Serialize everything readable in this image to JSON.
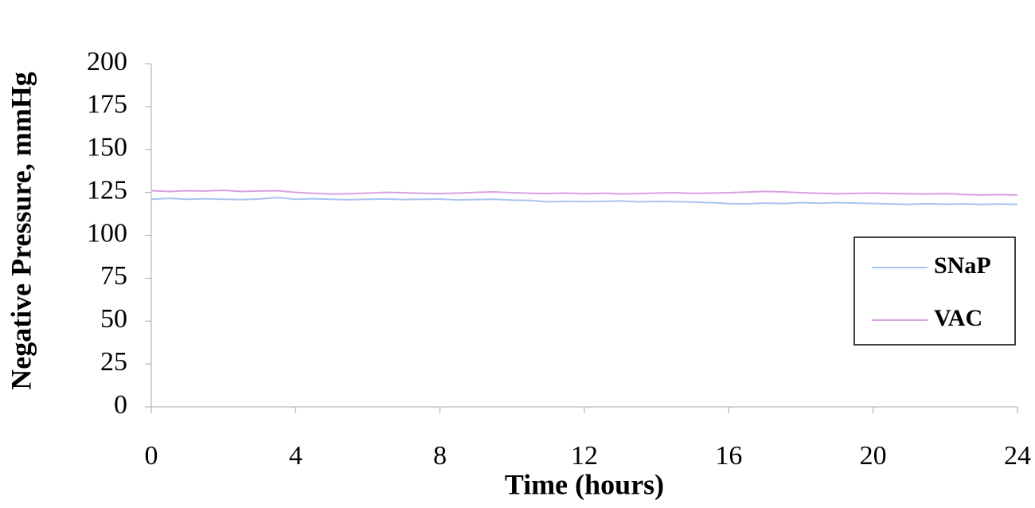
{
  "chart_data": {
    "type": "line",
    "x_label": "Time (hours)",
    "y_label": "Negative Pressure, mmHg",
    "x": [
      0,
      0.5,
      1,
      1.5,
      2,
      2.5,
      3,
      3.5,
      4,
      4.5,
      5,
      5.5,
      6,
      6.5,
      7,
      7.5,
      8,
      8.5,
      9,
      9.5,
      10,
      10.5,
      11,
      11.5,
      12,
      12.5,
      13,
      13.5,
      14,
      14.5,
      15,
      15.5,
      16,
      16.5,
      17,
      17.5,
      18,
      18.5,
      19,
      19.5,
      20,
      20.5,
      21,
      21.5,
      22,
      22.5,
      23,
      23.5,
      24
    ],
    "series": [
      {
        "name": "SNaP",
        "color": "#a9c3f0",
        "values": [
          121,
          121.5,
          121,
          121.3,
          121,
          120.8,
          121.2,
          122,
          121,
          121.3,
          121,
          120.7,
          121,
          121.2,
          120.8,
          121,
          121.1,
          120.6,
          120.8,
          121,
          120.5,
          120.3,
          119.5,
          119.8,
          119.6,
          119.8,
          120,
          119.5,
          119.7,
          119.6,
          119.4,
          119,
          118.5,
          118.3,
          118.8,
          118.5,
          119,
          118.7,
          119,
          118.8,
          118.5,
          118.3,
          118,
          118.4,
          118.1,
          118.3,
          118,
          118.2,
          118
        ]
      },
      {
        "name": "VAC",
        "color": "#d9a0e2",
        "values": [
          126,
          125.5,
          126,
          125.8,
          126.2,
          125.5,
          125.8,
          126,
          125,
          124.5,
          124,
          124.2,
          124.6,
          125,
          124.8,
          124.5,
          124.3,
          124.6,
          125,
          125.3,
          124.8,
          124.5,
          124.3,
          124.6,
          124.2,
          124.5,
          124.1,
          124.3,
          124.6,
          124.8,
          124.4,
          124.6,
          124.8,
          125.2,
          125.6,
          125.3,
          124.8,
          124.5,
          124.2,
          124.4,
          124.6,
          124.3,
          124.2,
          124,
          124.3,
          123.8,
          123.5,
          123.7,
          123.5
        ]
      }
    ],
    "xlim": [
      0,
      24
    ],
    "xticks": [
      0,
      4,
      8,
      12,
      16,
      20,
      24
    ],
    "ylim": [
      0,
      200
    ],
    "yticks": [
      0,
      25,
      50,
      75,
      100,
      125,
      150,
      175,
      200
    ],
    "grid": false,
    "legend": "right"
  }
}
